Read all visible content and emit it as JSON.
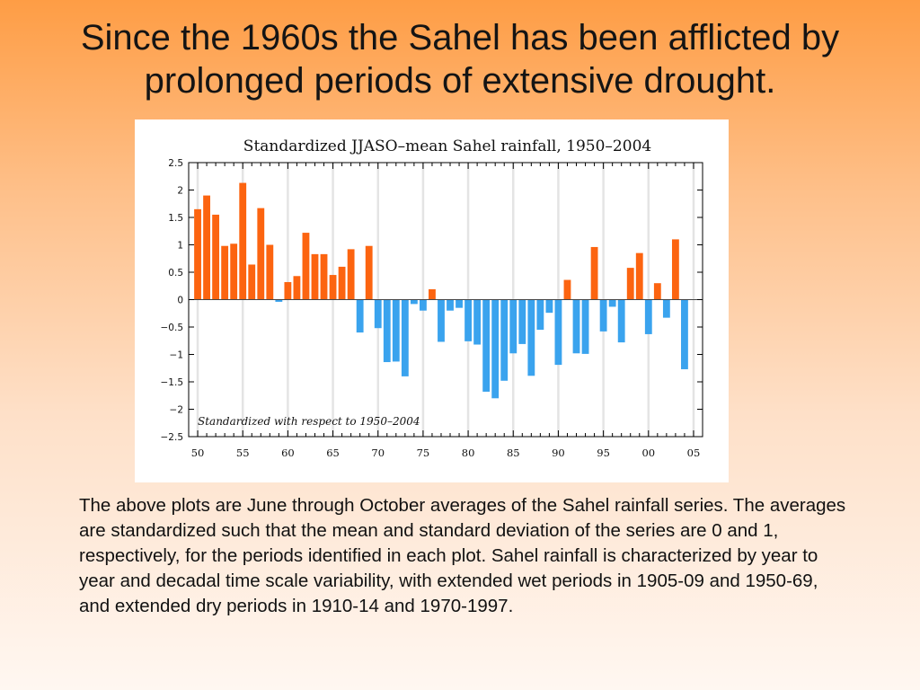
{
  "slide": {
    "title": "Since the 1960s the Sahel has been afflicted by prolonged periods of extensive drought.",
    "body": "The above plots are June through October averages of the Sahel rainfall series. The averages are standardized such that the mean and standard deviation of the series are 0 and 1, respectively, for the periods identified in each plot. Sahel rainfall is characterized by year to year and decadal time scale variability, with extended wet periods in 1905-09 and 1950-69, and extended dry periods in 1910-14 and 1970-1997."
  },
  "chart_data": {
    "type": "bar",
    "title": "Standardized JJASO–mean Sahel rainfall, 1950–2004",
    "annotation": "Standardized with respect to 1950–2004",
    "xlabel": "",
    "ylabel": "",
    "x": [
      1950,
      1951,
      1952,
      1953,
      1954,
      1955,
      1956,
      1957,
      1958,
      1959,
      1960,
      1961,
      1962,
      1963,
      1964,
      1965,
      1966,
      1967,
      1968,
      1969,
      1970,
      1971,
      1972,
      1973,
      1974,
      1975,
      1976,
      1977,
      1978,
      1979,
      1980,
      1981,
      1982,
      1983,
      1984,
      1985,
      1986,
      1987,
      1988,
      1989,
      1990,
      1991,
      1992,
      1993,
      1994,
      1995,
      1996,
      1997,
      1998,
      1999,
      2000,
      2001,
      2002,
      2003,
      2004
    ],
    "values": [
      1.65,
      1.9,
      1.55,
      0.98,
      1.02,
      2.13,
      0.64,
      1.67,
      1.0,
      -0.04,
      0.32,
      0.43,
      1.22,
      0.83,
      0.83,
      0.45,
      0.6,
      0.92,
      -0.6,
      0.98,
      -0.52,
      -1.14,
      -1.13,
      -1.4,
      -0.08,
      -0.2,
      0.19,
      -0.77,
      -0.2,
      -0.15,
      -0.76,
      -0.82,
      -1.68,
      -1.8,
      -1.48,
      -0.98,
      -0.81,
      -1.39,
      -0.55,
      -0.24,
      -1.19,
      0.36,
      -0.98,
      -0.99,
      0.96,
      -0.58,
      -0.13,
      -0.78,
      0.58,
      0.85,
      -0.63,
      0.3,
      -0.33,
      1.1,
      -1.27
    ],
    "ylim": [
      -2.5,
      2.5
    ],
    "yticks": [
      2.5,
      2,
      1.5,
      1,
      0.5,
      0,
      -0.5,
      -1,
      -1.5,
      -2,
      -2.5
    ],
    "ytick_labels": [
      "2.5",
      "2",
      "1.5",
      "1",
      "0.5",
      "0",
      "−0.5",
      "−1",
      "−1.5",
      "−2",
      "−2.5"
    ],
    "xticks": [
      1950,
      1955,
      1960,
      1965,
      1970,
      1975,
      1980,
      1985,
      1990,
      1995,
      2000,
      2005
    ],
    "xtick_labels": [
      "50",
      "55",
      "60",
      "65",
      "70",
      "75",
      "80",
      "85",
      "90",
      "95",
      "00",
      "05"
    ],
    "colors": {
      "positive": "#fc6410",
      "negative": "#3aa3ee",
      "gridline": "#e4e4e4",
      "axis": "#000000"
    },
    "grid": true
  }
}
